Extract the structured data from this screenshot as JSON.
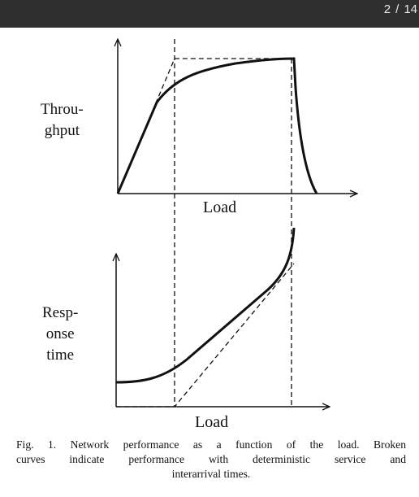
{
  "viewer": {
    "page_current": "2",
    "page_sep": "/",
    "page_total": "14"
  },
  "figure": {
    "top_chart": {
      "ylabel_line1": "Throu-",
      "ylabel_line2": "ghput",
      "xlabel": "Load"
    },
    "bottom_chart": {
      "ylabel_line1": "Resp-",
      "ylabel_line2": "onse",
      "ylabel_line3": "time",
      "xlabel": "Load"
    },
    "caption": {
      "line1": "Fig. 1. Network performance as a function of the load. Broken",
      "line2": "curves indicate performance with deterministic service and",
      "line3": "interarrival times."
    }
  },
  "colors": {
    "toolbar_bg": "#2f2f2f",
    "ink": "#111111"
  }
}
